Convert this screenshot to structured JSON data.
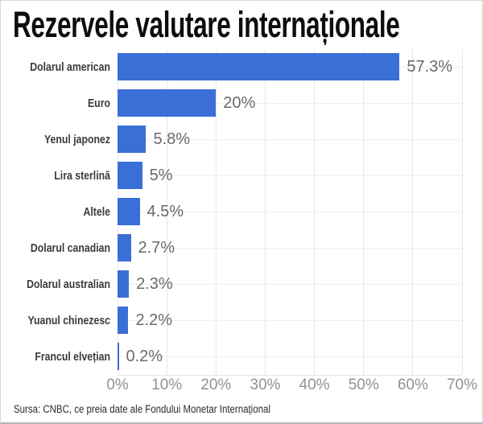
{
  "header": {
    "title": "Rezervele valutare internaționale"
  },
  "footer": {
    "source": "Sursa: CNBC, ce preia date ale Fondului Monetar Internațional"
  },
  "chart_data": {
    "type": "bar",
    "orientation": "horizontal",
    "title": "Rezervele valutare internaționale",
    "categories": [
      "Dolarul american",
      "Euro",
      "Yenul japonez",
      "Lira sterlină",
      "Altele",
      "Dolarul canadian",
      "Dolarul australian",
      "Yuanul chinezesc",
      "Francul elvețian"
    ],
    "values": [
      57.3,
      20,
      5.8,
      5,
      4.5,
      2.7,
      2.3,
      2.2,
      0.2
    ],
    "value_labels": [
      "57.3%",
      "20%",
      "5.8%",
      "5%",
      "4.5%",
      "2.7%",
      "2.3%",
      "2.2%",
      "0.2%"
    ],
    "xlabel": "",
    "ylabel": "",
    "xlim": [
      0,
      70
    ],
    "x_ticks": [
      0,
      10,
      20,
      30,
      40,
      50,
      60,
      70
    ],
    "x_tick_labels": [
      "0%",
      "10%",
      "20%",
      "30%",
      "40%",
      "50%",
      "60%",
      "70%"
    ],
    "grid": true,
    "legend": false,
    "bar_color": "#3b6fd8",
    "colors": {
      "bar": "#3b6fd8",
      "category_label": "#3b3b3b",
      "value_label": "#6a6a6a",
      "axis_label": "#8d9297",
      "gridline": "#e4e7ea",
      "row_line": "#efefef",
      "title": "#0d0d0d",
      "source": "#2b2b2b"
    }
  }
}
